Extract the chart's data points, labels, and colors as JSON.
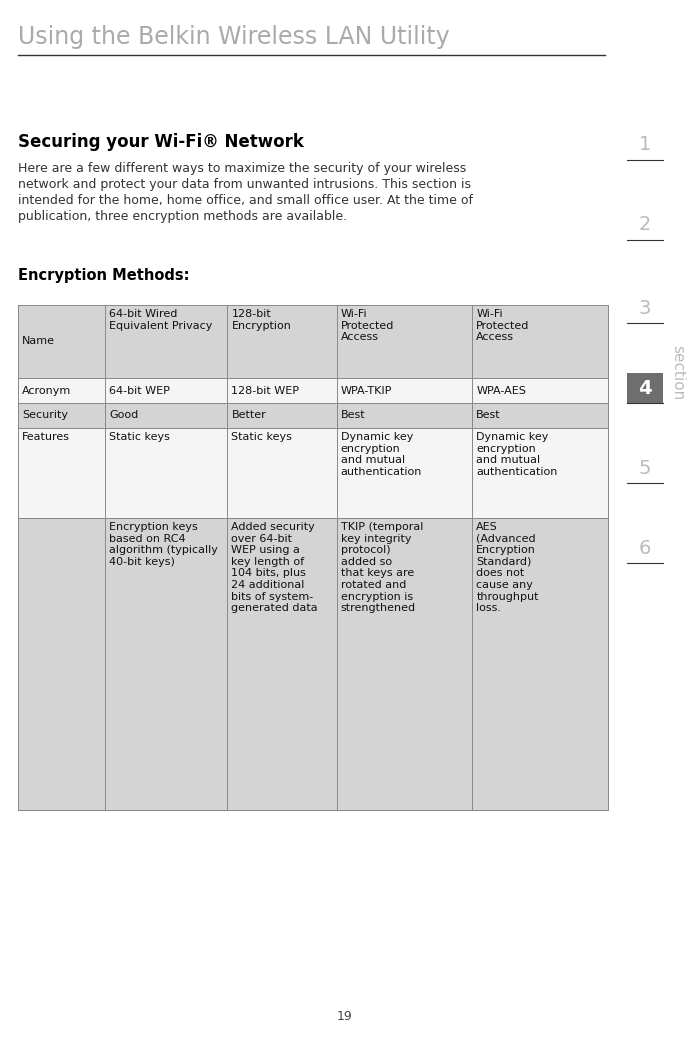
{
  "page_title": "Using the Belkin Wireless LAN Utility",
  "section_heading": "Securing your Wi-Fi® Network",
  "body_lines": [
    "Here are a few different ways to maximize the security of your wireless",
    "network and protect your data from unwanted intrusions. This section is",
    "intended for the home, home office, and small office user. At the time of",
    "publication, three encryption methods are available."
  ],
  "encryption_heading": "Encryption Methods:",
  "page_number": "19",
  "section_numbers": [
    "1",
    "2",
    "3",
    "4",
    "5",
    "6"
  ],
  "active_section": "4",
  "section_label": "section",
  "table_header_bg": "#d4d4d4",
  "table_row_bg_white": "#f5f5f5",
  "table_border_color": "#888888",
  "header_title_color": "#aaaaaa",
  "heading_color": "#000000",
  "body_color": "#333333",
  "active_section_bg": "#6e6e6e",
  "active_section_fg": "#ffffff",
  "inactive_section_color": "#bbbbbb",
  "line_color": "#333333",
  "table_col0_label": "Name",
  "table_col1_name": "64-bit Wired\nEquivalent Privacy",
  "table_col2_name": "128-bit\nEncryption",
  "table_col3_name": "Wi-Fi\nProtected\nAccess",
  "table_col4_name": "Wi-Fi\nProtected\nAccess",
  "table_acronym_label": "Acronym",
  "table_acronym_col1": "64-bit WEP",
  "table_acronym_col2": "128-bit WEP",
  "table_acronym_col3": "WPA-TKIP",
  "table_acronym_col4": "WPA-AES",
  "table_security_label": "Security",
  "table_security_col1": "Good",
  "table_security_col2": "Better",
  "table_security_col3": "Best",
  "table_security_col4": "Best",
  "table_features_label": "Features",
  "table_features_col1": "Static keys",
  "table_features_col2": "Static keys",
  "table_features_col3": "Dynamic key\nencryption\nand mutual\nauthentication",
  "table_features_col4": "Dynamic key\nencryption\nand mutual\nauthentication",
  "table_detail_col1": "Encryption keys\nbased on RC4\nalgorithm (typically\n40-bit keys)",
  "table_detail_col2": "Added security\nover 64-bit\nWEP using a\nkey length of\n104 bits, plus\n24 additional\nbits of system-\ngenerated data",
  "table_detail_col3": "TKIP (temporal\nkey integrity\nprotocol)\nadded so\nthat keys are\nrotated and\nencryption is\nstrengthened",
  "table_detail_col4": "AES\n(Advanced\nEncryption\nStandard)\ndoes not\ncause any\nthroughput\nloss."
}
